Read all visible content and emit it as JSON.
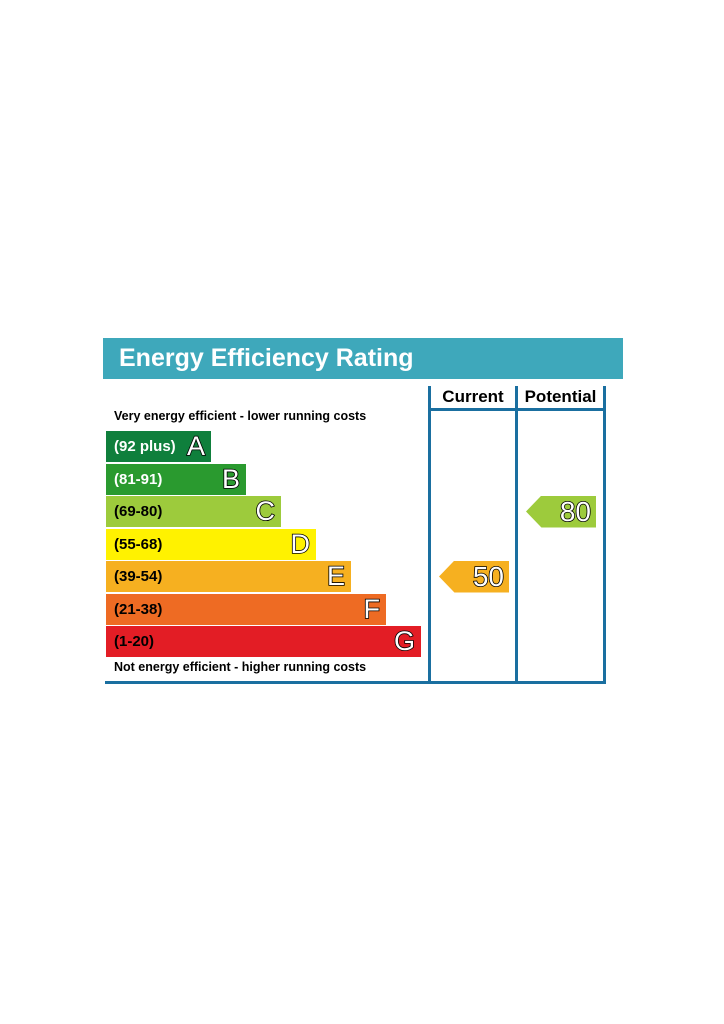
{
  "title": "Energy Efficiency Rating",
  "columns": {
    "current": "Current",
    "potential": "Potential"
  },
  "top_note": "Very energy efficient - lower running costs",
  "bottom_note": "Not energy efficient - higher running costs",
  "colors": {
    "header": "#3ea8bb",
    "frame": "#1a6fa0"
  },
  "chart_data": {
    "type": "bar",
    "title": "Energy Efficiency Rating",
    "bands": [
      {
        "range": "(92 plus)",
        "letter": "A",
        "color": "#0f7f3c",
        "text_color": "#ffffff"
      },
      {
        "range": "(81-91)",
        "letter": "B",
        "color": "#2a9a2f",
        "text_color": "#ffffff"
      },
      {
        "range": "(69-80)",
        "letter": "C",
        "color": "#9dcb3c",
        "text_color": "#000000"
      },
      {
        "range": "(55-68)",
        "letter": "D",
        "color": "#fff200",
        "text_color": "#000000"
      },
      {
        "range": "(39-54)",
        "letter": "E",
        "color": "#f6b020",
        "text_color": "#000000"
      },
      {
        "range": "(21-38)",
        "letter": "F",
        "color": "#ee6b23",
        "text_color": "#000000"
      },
      {
        "range": "(1-20)",
        "letter": "G",
        "color": "#e31d25",
        "text_color": "#000000"
      }
    ],
    "current": {
      "value": "50",
      "band": "E",
      "color": "#f6b020"
    },
    "potential": {
      "value": "80",
      "band": "C",
      "color": "#9dcb3c"
    }
  }
}
